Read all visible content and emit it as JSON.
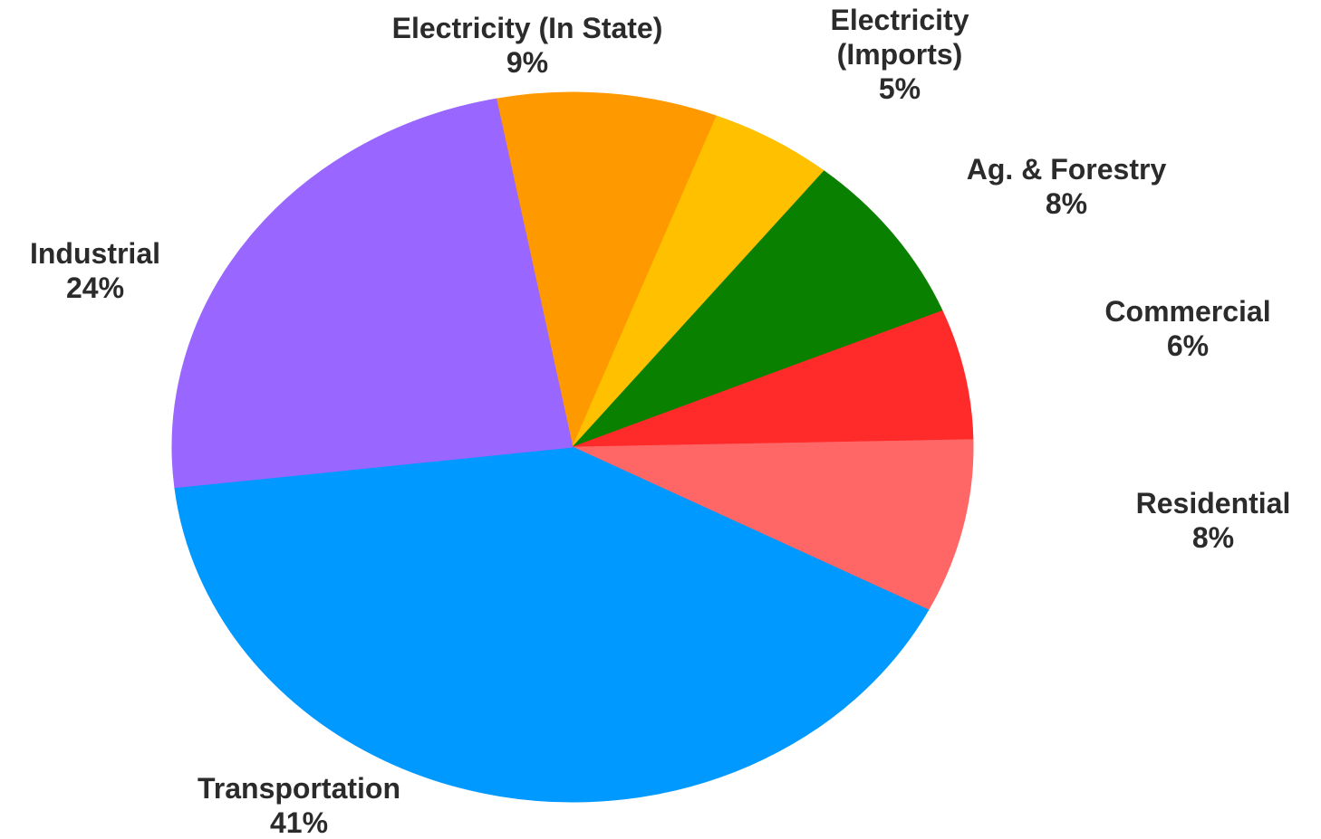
{
  "chart_data": {
    "type": "pie",
    "title": "",
    "slices": [
      {
        "label_lines": [
          "Electricity (In State)"
        ],
        "value": 9,
        "value_label": "9%",
        "color": "#FF9900"
      },
      {
        "label_lines": [
          "Electricity",
          "(Imports)"
        ],
        "value": 5,
        "value_label": "5%",
        "color": "#FFC000"
      },
      {
        "label_lines": [
          "Ag. & Forestry"
        ],
        "value": 8,
        "value_label": "8%",
        "color": "#0A8000"
      },
      {
        "label_lines": [
          "Commercial"
        ],
        "value": 6,
        "value_label": "6%",
        "color": "#FF2A2A"
      },
      {
        "label_lines": [
          "Residential"
        ],
        "value": 8,
        "value_label": "8%",
        "color": "#FF6666"
      },
      {
        "label_lines": [
          "Transportation"
        ],
        "value": 41,
        "value_label": "41%",
        "color": "#0099FF"
      },
      {
        "label_lines": [
          "Industrial"
        ],
        "value": 24,
        "value_label": "24%",
        "color": "#9966FF"
      }
    ]
  }
}
